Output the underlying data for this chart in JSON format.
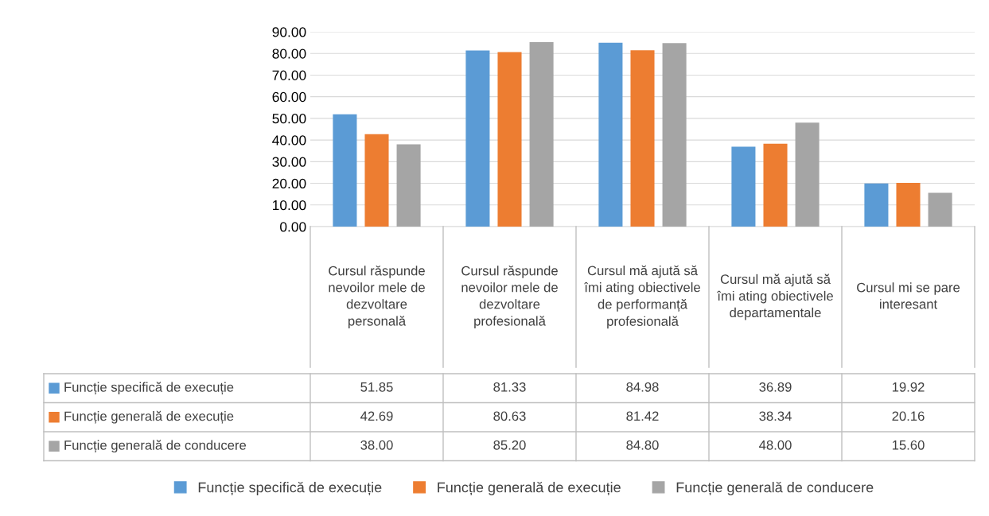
{
  "chart_data": {
    "type": "bar",
    "categories": [
      "Cursul răspunde nevoilor mele de dezvoltare personală",
      "Cursul răspunde nevoilor mele de dezvoltare profesională",
      "Cursul mă ajută să îmi ating obiectivele de performanță profesională",
      "Cursul mă ajută să îmi ating obiectivele departamentale",
      "Cursul mi se pare interesant"
    ],
    "series": [
      {
        "name": "Funcție specifică de execuție",
        "color": "#5b9bd5",
        "values": [
          51.85,
          81.33,
          84.98,
          36.89,
          19.92
        ],
        "value_labels": [
          "51.85",
          "81.33",
          "84.98",
          "36.89",
          "19.92"
        ]
      },
      {
        "name": "Funcție generală de execuție",
        "color": "#ed7d31",
        "values": [
          42.69,
          80.63,
          81.42,
          38.34,
          20.16
        ],
        "value_labels": [
          "42.69",
          "80.63",
          "81.42",
          "38.34",
          "20.16"
        ]
      },
      {
        "name": "Funcție generală de conducere",
        "color": "#a5a5a5",
        "values": [
          38.0,
          85.2,
          84.8,
          48.0,
          15.6
        ],
        "value_labels": [
          "38.00",
          "85.20",
          "84.80",
          "48.00",
          "15.60"
        ]
      }
    ],
    "ylim": [
      0,
      90
    ],
    "yticks": [
      {
        "value": 0,
        "label": "0.00"
      },
      {
        "value": 10,
        "label": "10.00"
      },
      {
        "value": 20,
        "label": "20.00"
      },
      {
        "value": 30,
        "label": "30.00"
      },
      {
        "value": 40,
        "label": "40.00"
      },
      {
        "value": 50,
        "label": "50.00"
      },
      {
        "value": 60,
        "label": "60.00"
      },
      {
        "value": 70,
        "label": "70.00"
      },
      {
        "value": 80,
        "label": "80.00"
      },
      {
        "value": 90,
        "label": "90.00"
      }
    ],
    "grid": "y",
    "legend": "bottom"
  }
}
